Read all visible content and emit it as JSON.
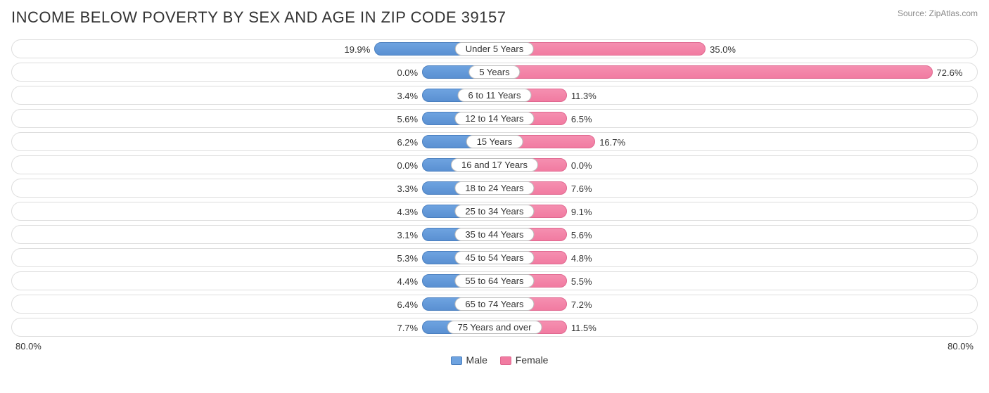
{
  "title": "INCOME BELOW POVERTY BY SEX AND AGE IN ZIP CODE 39157",
  "source": "Source: ZipAtlas.com",
  "chart": {
    "type": "diverging-bar",
    "axis_max": 80.0,
    "axis_label_left": "80.0%",
    "axis_label_right": "80.0%",
    "male_color": "#6ea3e0",
    "male_border": "#4a7fbf",
    "female_color": "#f17ba1",
    "female_border": "#e06890",
    "row_border_color": "#dddddd",
    "background_color": "#ffffff",
    "min_bar_pct": 12.0,
    "label_fontsize": 13,
    "title_fontsize": 22,
    "rows": [
      {
        "age": "Under 5 Years",
        "male": 19.9,
        "female": 35.0
      },
      {
        "age": "5 Years",
        "male": 0.0,
        "female": 72.6
      },
      {
        "age": "6 to 11 Years",
        "male": 3.4,
        "female": 11.3
      },
      {
        "age": "12 to 14 Years",
        "male": 5.6,
        "female": 6.5
      },
      {
        "age": "15 Years",
        "male": 6.2,
        "female": 16.7
      },
      {
        "age": "16 and 17 Years",
        "male": 0.0,
        "female": 0.0
      },
      {
        "age": "18 to 24 Years",
        "male": 3.3,
        "female": 7.6
      },
      {
        "age": "25 to 34 Years",
        "male": 4.3,
        "female": 9.1
      },
      {
        "age": "35 to 44 Years",
        "male": 3.1,
        "female": 5.6
      },
      {
        "age": "45 to 54 Years",
        "male": 5.3,
        "female": 4.8
      },
      {
        "age": "55 to 64 Years",
        "male": 4.4,
        "female": 5.5
      },
      {
        "age": "65 to 74 Years",
        "male": 6.4,
        "female": 7.2
      },
      {
        "age": "75 Years and over",
        "male": 7.7,
        "female": 11.5
      }
    ]
  },
  "legend": {
    "male": "Male",
    "female": "Female"
  }
}
